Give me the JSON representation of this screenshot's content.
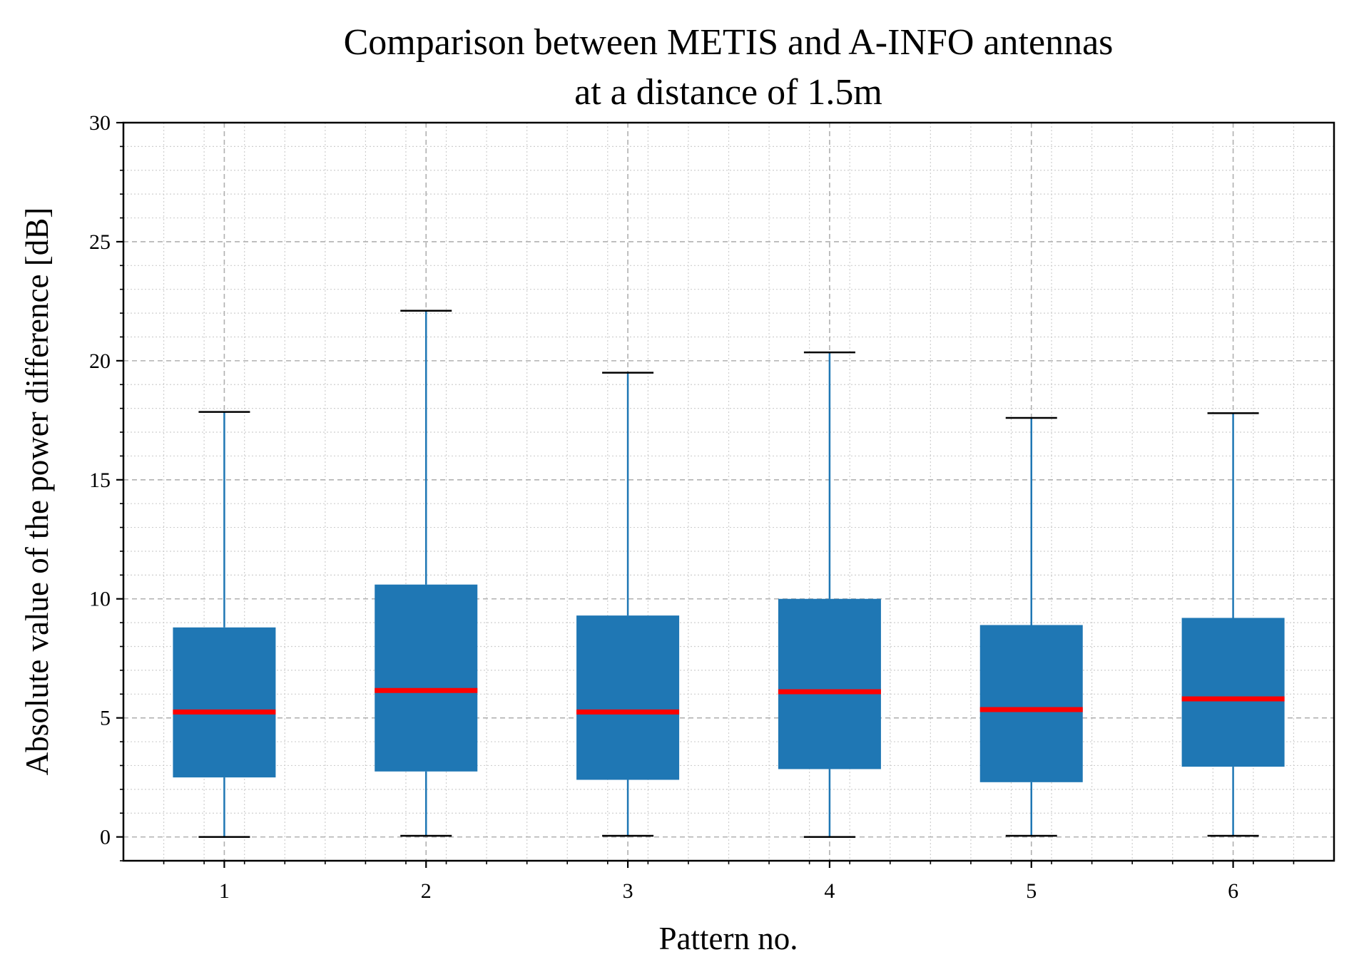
{
  "chart_data": {
    "type": "box",
    "title_lines": [
      "Comparison between METIS and A-INFO antennas",
      "at a distance of 1.5m"
    ],
    "xlabel": "Pattern no.",
    "ylabel": "Absolute value of the power difference [dB]",
    "categories": [
      "1",
      "2",
      "3",
      "4",
      "5",
      "6"
    ],
    "ylim": [
      -1,
      30
    ],
    "yticks": [
      0,
      5,
      10,
      15,
      20,
      25,
      30
    ],
    "ytick_labels": [
      "0",
      "5",
      "10",
      "15",
      "20",
      "25",
      "30"
    ],
    "grid": {
      "major": true,
      "minor": true,
      "major_style": "dashed",
      "minor_style": "dotted"
    },
    "boxes": [
      {
        "category": "1",
        "whisker_low": 0.0,
        "q1": 2.5,
        "median": 5.25,
        "q3": 8.8,
        "whisker_high": 17.85
      },
      {
        "category": "2",
        "whisker_low": 0.05,
        "q1": 2.75,
        "median": 6.15,
        "q3": 10.6,
        "whisker_high": 22.1
      },
      {
        "category": "3",
        "whisker_low": 0.05,
        "q1": 2.4,
        "median": 5.25,
        "q3": 9.3,
        "whisker_high": 19.5
      },
      {
        "category": "4",
        "whisker_low": 0.0,
        "q1": 2.85,
        "median": 6.1,
        "q3": 10.0,
        "whisker_high": 20.35
      },
      {
        "category": "5",
        "whisker_low": 0.05,
        "q1": 2.3,
        "median": 5.35,
        "q3": 8.9,
        "whisker_high": 17.6
      },
      {
        "category": "6",
        "whisker_low": 0.05,
        "q1": 2.95,
        "median": 5.8,
        "q3": 9.2,
        "whisker_high": 17.8
      }
    ],
    "colors": {
      "box_fill": "#1f77b4",
      "whisker": "#1f77b4",
      "cap": "#000000",
      "median": "#ff0000",
      "grid": "#b0b0b0"
    }
  }
}
